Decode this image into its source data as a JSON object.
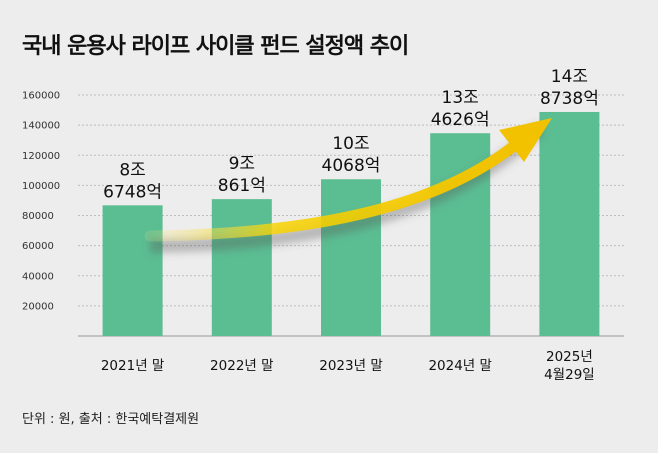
{
  "title": "국내 운용사 라이프 사이클 펀드 설정액 추이",
  "footnote": "단위 : 원,  출처 : 한국예탁결제원",
  "colors": {
    "bar": "#5bbd92",
    "arrow": "#f5c400",
    "grid": "#bdbdbd",
    "background": "#ededed"
  },
  "chart_data": {
    "type": "bar",
    "title": "국내 운용사 라이프 사이클 펀드 설정액 추이",
    "xlabel": "",
    "ylabel": "",
    "ylim": [
      0,
      160000
    ],
    "yticks": [
      "160000",
      "140000",
      "120000",
      "100000",
      "80000",
      "60000",
      "40000",
      "20000"
    ],
    "grid": true,
    "categories": [
      [
        "2021년 말"
      ],
      [
        "2022년 말"
      ],
      [
        "2023년 말"
      ],
      [
        "2024년 말"
      ],
      [
        "2025년",
        "4월29일"
      ]
    ],
    "values": [
      86748,
      90861,
      104068,
      134626,
      148738
    ],
    "data_labels": [
      [
        "8조",
        "6748억"
      ],
      [
        "9조",
        "861억"
      ],
      [
        "10조",
        "4068억"
      ],
      [
        "13조",
        "4626억"
      ],
      [
        "14조",
        "8738억"
      ]
    ],
    "annotation": "yellow-upward-trend-arrow"
  }
}
